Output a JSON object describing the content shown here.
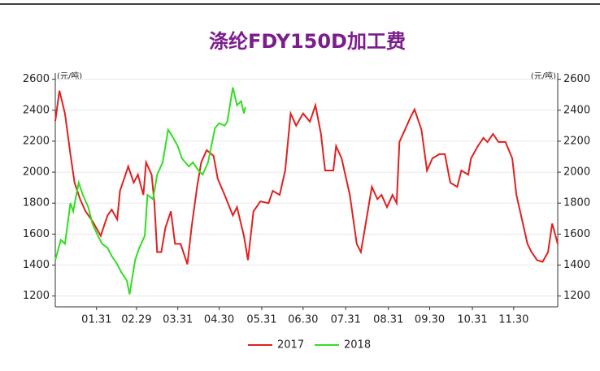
{
  "chart_data": {
    "type": "line",
    "title": "涤纶FDY150D加工费",
    "y_unit": "(元/吨)",
    "xlim": [
      0,
      365
    ],
    "xticks": [
      {
        "value": 30,
        "label": "01.31"
      },
      {
        "value": 59,
        "label": "02.29"
      },
      {
        "value": 89,
        "label": "03.31"
      },
      {
        "value": 119,
        "label": "04.30"
      },
      {
        "value": 150,
        "label": "05.31"
      },
      {
        "value": 180,
        "label": "06.30"
      },
      {
        "value": 211,
        "label": "07.31"
      },
      {
        "value": 242,
        "label": "08.31"
      },
      {
        "value": 272,
        "label": "09.30"
      },
      {
        "value": 303,
        "label": "10.31"
      },
      {
        "value": 333,
        "label": "11.30"
      }
    ],
    "ylim": [
      1130,
      2640
    ],
    "yticks": [
      1200,
      1400,
      1600,
      1800,
      2000,
      2200,
      2400,
      2600
    ],
    "grid": true,
    "legend": "bottom",
    "series": [
      {
        "name": "2017",
        "color": "#e02020",
        "x": [
          0,
          3,
          7,
          11,
          14,
          18,
          22,
          27,
          33,
          38,
          41,
          45,
          47,
          51,
          53,
          57,
          60,
          64,
          66,
          70,
          72,
          74,
          77,
          80,
          84,
          87,
          91,
          96,
          99,
          103,
          106,
          110,
          115,
          118,
          123,
          129,
          132,
          137,
          140,
          144,
          149,
          155,
          158,
          163,
          167,
          171,
          175,
          180,
          185,
          189,
          193,
          196,
          202,
          204,
          208,
          214,
          219,
          222,
          226,
          230,
          234,
          237,
          241,
          245,
          248,
          250,
          254,
          258,
          261,
          266,
          270,
          274,
          279,
          283,
          287,
          292,
          295,
          300,
          302,
          307,
          311,
          314,
          318,
          322,
          327,
          332,
          335,
          339,
          343,
          346,
          350,
          354,
          358,
          361,
          365
        ],
        "values": [
          2330,
          2526,
          2379,
          2116,
          1932,
          1826,
          1747,
          1684,
          1589,
          1721,
          1758,
          1695,
          1879,
          1984,
          2037,
          1932,
          1984,
          1853,
          2063,
          1984,
          1800,
          1484,
          1484,
          1642,
          1747,
          1537,
          1537,
          1405,
          1642,
          1905,
          2063,
          2142,
          2105,
          1958,
          1853,
          1721,
          1774,
          1589,
          1432,
          1747,
          1811,
          1800,
          1879,
          1853,
          2011,
          2379,
          2300,
          2379,
          2326,
          2432,
          2247,
          2011,
          2011,
          2168,
          2089,
          1853,
          1537,
          1484,
          1695,
          1905,
          1826,
          1853,
          1774,
          1853,
          1800,
          2195,
          2274,
          2353,
          2405,
          2274,
          2011,
          2089,
          2116,
          2116,
          1932,
          1905,
          2011,
          1984,
          2089,
          2168,
          2221,
          2195,
          2247,
          2195,
          2195,
          2089,
          1853,
          1695,
          1537,
          1484,
          1432,
          1421,
          1484,
          1668,
          1537
        ]
      },
      {
        "name": "2018",
        "color": "#33dd22",
        "x": [
          0,
          4,
          7,
          11,
          13,
          17,
          20,
          24,
          27,
          31,
          34,
          38,
          41,
          45,
          48,
          52,
          54,
          58,
          61,
          65,
          67,
          71,
          74,
          78,
          82,
          85,
          89,
          92,
          97,
          100,
          104,
          107,
          111,
          116,
          119,
          123,
          125,
          129,
          132,
          135,
          137,
          138
        ],
        "values": [
          1432,
          1563,
          1537,
          1800,
          1747,
          1932,
          1853,
          1774,
          1668,
          1589,
          1537,
          1511,
          1458,
          1405,
          1353,
          1300,
          1211,
          1432,
          1511,
          1589,
          1853,
          1826,
          1984,
          2063,
          2274,
          2232,
          2168,
          2089,
          2037,
          2063,
          2011,
          1984,
          2063,
          2284,
          2316,
          2300,
          2326,
          2547,
          2432,
          2458,
          2379,
          2421
        ]
      }
    ]
  }
}
